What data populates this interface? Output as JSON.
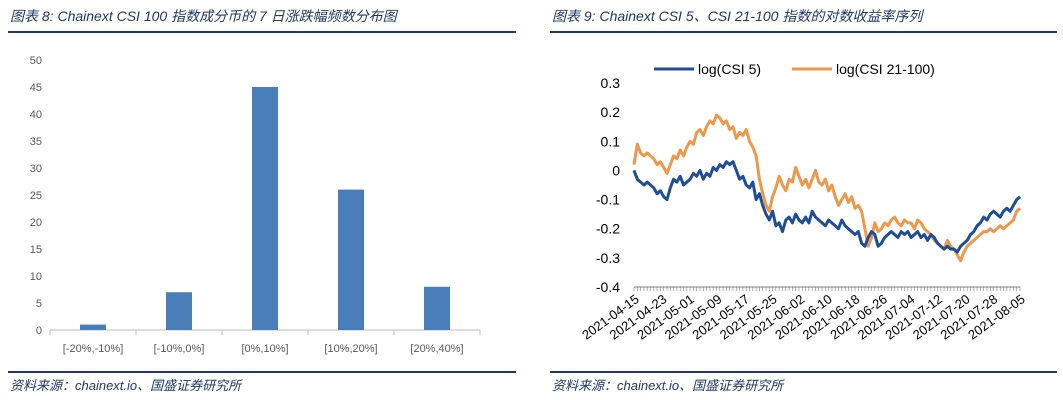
{
  "left": {
    "title": "图表 8:  Chainext CSI 100 指数成分币的 7 日涨跌幅频数分布图",
    "source": "资料来源：chainext.io、国盛证券研究所"
  },
  "right": {
    "title": "图表 9:  Chainext CSI 5、CSI 21-100 指数的对数收益率序列",
    "source": "资料来源：chainext.io、国盛证券研究所"
  },
  "colors": {
    "bar": "#4a7ebb",
    "series1": "#1f4e99",
    "series2": "#f0974a",
    "axis": "#bfbfbf",
    "text": "#1f3864"
  },
  "chart_data": [
    {
      "type": "bar",
      "title": "Chainext CSI 100 指数成分币的 7 日涨跌幅频数分布图",
      "categories": [
        "[-20%,-10%]",
        "[-10%,0%]",
        "[0%,10%]",
        "[10%,20%]",
        "[20%,40%]"
      ],
      "values": [
        1,
        7,
        45,
        26,
        8
      ],
      "ylim": [
        0,
        50
      ],
      "yticks": [
        0,
        5,
        10,
        15,
        20,
        25,
        30,
        35,
        40,
        45,
        50
      ],
      "xlabel": "",
      "ylabel": "",
      "grid": false,
      "legend": "none"
    },
    {
      "type": "line",
      "title": "Chainext CSI 5、CSI 21-100 指数的对数收益率序列",
      "xticks": [
        "2021-04-15",
        "2021-04-23",
        "2021-05-01",
        "2021-05-09",
        "2021-05-17",
        "2021-05-25",
        "2021-06-02",
        "2021-06-10",
        "2021-06-18",
        "2021-06-26",
        "2021-07-04",
        "2021-07-12",
        "2021-07-20",
        "2021-07-28",
        "2021-08-05"
      ],
      "ylim": [
        -0.4,
        0.3
      ],
      "yticks": [
        "0.3",
        "0.2",
        "0.1",
        "0",
        "-0.1",
        "-0.2",
        "-0.3",
        "-0.4"
      ],
      "legend": "top",
      "series": [
        {
          "name": "log(CSI 5)",
          "values": [
            0,
            -0.03,
            -0.04,
            -0.05,
            -0.04,
            -0.05,
            -0.06,
            -0.08,
            -0.07,
            -0.09,
            -0.1,
            -0.06,
            -0.03,
            -0.04,
            -0.02,
            -0.05,
            -0.04,
            -0.03,
            -0.01,
            -0.02,
            0,
            -0.03,
            -0.01,
            -0.02,
            0.01,
            0,
            0.02,
            0.01,
            0.03,
            0.02,
            0.03,
            0,
            -0.03,
            -0.02,
            -0.05,
            -0.06,
            -0.04,
            -0.1,
            -0.08,
            -0.12,
            -0.15,
            -0.17,
            -0.14,
            -0.19,
            -0.18,
            -0.21,
            -0.17,
            -0.16,
            -0.18,
            -0.15,
            -0.17,
            -0.18,
            -0.16,
            -0.18,
            -0.14,
            -0.16,
            -0.17,
            -0.18,
            -0.19,
            -0.17,
            -0.18,
            -0.19,
            -0.2,
            -0.17,
            -0.19,
            -0.2,
            -0.21,
            -0.22,
            -0.21,
            -0.25,
            -0.26,
            -0.23,
            -0.21,
            -0.22,
            -0.26,
            -0.25,
            -0.23,
            -0.22,
            -0.21,
            -0.22,
            -0.23,
            -0.21,
            -0.22,
            -0.21,
            -0.23,
            -0.22,
            -0.21,
            -0.23,
            -0.22,
            -0.24,
            -0.22,
            -0.23,
            -0.25,
            -0.26,
            -0.27,
            -0.26,
            -0.27,
            -0.27,
            -0.28,
            -0.26,
            -0.25,
            -0.24,
            -0.22,
            -0.21,
            -0.19,
            -0.18,
            -0.16,
            -0.17,
            -0.15,
            -0.14,
            -0.15,
            -0.16,
            -0.14,
            -0.13,
            -0.14,
            -0.12,
            -0.1,
            -0.09
          ]
        },
        {
          "name": "log(CSI 21-100)",
          "values": [
            0.02,
            0.09,
            0.06,
            0.05,
            0.06,
            0.05,
            0.04,
            0.02,
            0.03,
            0.01,
            -0.01,
            0.02,
            0.05,
            0.04,
            0.07,
            0.05,
            0.08,
            0.1,
            0.09,
            0.13,
            0.14,
            0.12,
            0.15,
            0.17,
            0.16,
            0.19,
            0.18,
            0.16,
            0.17,
            0.14,
            0.15,
            0.11,
            0.13,
            0.12,
            0.14,
            0.1,
            0.08,
            0.05,
            -0.03,
            -0.08,
            -0.12,
            -0.14,
            -0.09,
            -0.06,
            -0.02,
            -0.05,
            -0.07,
            -0.03,
            -0.04,
            0.01,
            -0.02,
            -0.05,
            -0.03,
            -0.06,
            -0.03,
            0,
            -0.04,
            -0.05,
            -0.03,
            -0.07,
            -0.05,
            -0.09,
            -0.12,
            -0.1,
            -0.08,
            -0.11,
            -0.09,
            -0.13,
            -0.12,
            -0.14,
            -0.2,
            -0.26,
            -0.23,
            -0.18,
            -0.21,
            -0.2,
            -0.18,
            -0.19,
            -0.17,
            -0.16,
            -0.18,
            -0.19,
            -0.17,
            -0.18,
            -0.18,
            -0.2,
            -0.17,
            -0.18,
            -0.2,
            -0.21,
            -0.22,
            -0.24,
            -0.25,
            -0.26,
            -0.27,
            -0.24,
            -0.26,
            -0.27,
            -0.29,
            -0.31,
            -0.28,
            -0.26,
            -0.25,
            -0.24,
            -0.23,
            -0.22,
            -0.21,
            -0.21,
            -0.2,
            -0.21,
            -0.2,
            -0.19,
            -0.2,
            -0.19,
            -0.18,
            -0.17,
            -0.14,
            -0.13
          ]
        }
      ]
    }
  ]
}
